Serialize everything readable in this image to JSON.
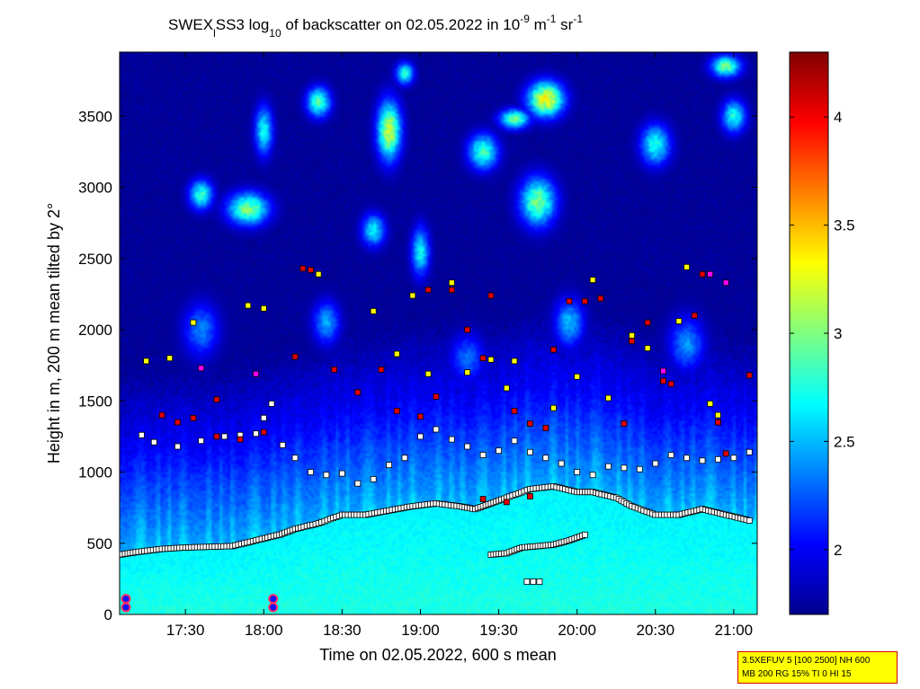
{
  "figure": {
    "title_parts": {
      "station": "SWEX",
      "sub": "l",
      "mid": "SS3 log",
      "base_sub": "10",
      "text": " of backscatter on 02.05.2022 in 10",
      "exp1": "-9",
      "unit_m": " m",
      "exp2": "-1",
      "unit_sr": " sr",
      "exp3": "-1"
    },
    "info_box": {
      "line1": "3.5XEFUV 5 [100 2500] NH 600",
      "line2": "MB 200 RG 15% TI 0 HI 15",
      "background": "#ffff00",
      "border": "#d00000"
    }
  },
  "chart_data": {
    "type": "heatmap",
    "xlabel": "Time on 02.05.2022, 600 s mean",
    "ylabel": "Height in m, 200 m mean tilted by 2°",
    "x_range_hours": [
      17.08,
      21.15
    ],
    "x_ticks": [
      {
        "value": 17.5,
        "label": "17:30"
      },
      {
        "value": 18.0,
        "label": "18:00"
      },
      {
        "value": 18.5,
        "label": "18:30"
      },
      {
        "value": 19.0,
        "label": "19:00"
      },
      {
        "value": 19.5,
        "label": "19:30"
      },
      {
        "value": 20.0,
        "label": "20:00"
      },
      {
        "value": 20.5,
        "label": "20:30"
      },
      {
        "value": 21.0,
        "label": "21:00"
      }
    ],
    "y_range": [
      0,
      3950
    ],
    "y_ticks": [
      0,
      500,
      1000,
      1500,
      2000,
      2500,
      3000,
      3500
    ],
    "colorbar": {
      "range": [
        1.7,
        4.3
      ],
      "ticks": [
        2,
        2.5,
        3,
        3.5,
        4
      ],
      "colormap": "jet"
    },
    "layers": {
      "surface_layer_value": 2.65,
      "upper_background_value": 1.75
    },
    "mixing_layer_height": [
      [
        17.08,
        420
      ],
      [
        17.2,
        440
      ],
      [
        17.35,
        460
      ],
      [
        17.5,
        470
      ],
      [
        17.65,
        475
      ],
      [
        17.8,
        480
      ],
      [
        17.95,
        520
      ],
      [
        18.1,
        560
      ],
      [
        18.2,
        600
      ],
      [
        18.35,
        640
      ],
      [
        18.5,
        700
      ],
      [
        18.65,
        700
      ],
      [
        18.8,
        730
      ],
      [
        18.95,
        760
      ],
      [
        19.1,
        780
      ],
      [
        19.25,
        760
      ],
      [
        19.35,
        740
      ],
      [
        19.45,
        780
      ],
      [
        19.55,
        820
      ],
      [
        19.7,
        880
      ],
      [
        19.85,
        900
      ],
      [
        20.0,
        860
      ],
      [
        20.1,
        860
      ],
      [
        20.25,
        820
      ],
      [
        20.35,
        760
      ],
      [
        20.5,
        700
      ],
      [
        20.65,
        700
      ],
      [
        20.8,
        740
      ],
      [
        20.95,
        700
      ],
      [
        21.1,
        660
      ]
    ],
    "lower_layer_points": [
      [
        19.45,
        420
      ],
      [
        19.55,
        430
      ],
      [
        19.65,
        470
      ],
      [
        19.75,
        480
      ],
      [
        19.85,
        490
      ],
      [
        19.95,
        520
      ],
      [
        20.05,
        560
      ]
    ],
    "isolated_low_points": [
      [
        19.68,
        230
      ],
      [
        19.72,
        230
      ],
      [
        19.76,
        230
      ]
    ],
    "cloud_base_points": [
      [
        17.22,
        1260
      ],
      [
        17.3,
        1210
      ],
      [
        17.45,
        1180
      ],
      [
        17.6,
        1220
      ],
      [
        17.75,
        1250
      ],
      [
        17.85,
        1260
      ],
      [
        17.95,
        1270
      ],
      [
        18.0,
        1380
      ],
      [
        18.05,
        1480
      ],
      [
        18.12,
        1190
      ],
      [
        18.2,
        1100
      ],
      [
        18.3,
        1000
      ],
      [
        18.4,
        980
      ],
      [
        18.5,
        990
      ],
      [
        18.6,
        920
      ],
      [
        18.7,
        950
      ],
      [
        18.8,
        1050
      ],
      [
        18.9,
        1100
      ],
      [
        19.0,
        1250
      ],
      [
        19.1,
        1300
      ],
      [
        19.2,
        1230
      ],
      [
        19.3,
        1180
      ],
      [
        19.4,
        1120
      ],
      [
        19.5,
        1150
      ],
      [
        19.6,
        1220
      ],
      [
        19.7,
        1140
      ],
      [
        19.8,
        1100
      ],
      [
        19.9,
        1060
      ],
      [
        20.0,
        1000
      ],
      [
        20.1,
        980
      ],
      [
        20.2,
        1040
      ],
      [
        20.3,
        1030
      ],
      [
        20.4,
        1020
      ],
      [
        20.5,
        1060
      ],
      [
        20.6,
        1120
      ],
      [
        20.7,
        1100
      ],
      [
        20.8,
        1080
      ],
      [
        20.9,
        1090
      ],
      [
        21.0,
        1100
      ],
      [
        21.1,
        1140
      ]
    ],
    "red_marks": [
      [
        17.35,
        1400
      ],
      [
        17.45,
        1350
      ],
      [
        17.55,
        1380
      ],
      [
        17.7,
        1250
      ],
      [
        17.85,
        1230
      ],
      [
        18.0,
        1280
      ],
      [
        18.2,
        1810
      ],
      [
        18.25,
        2430
      ],
      [
        18.3,
        2420
      ],
      [
        18.45,
        1720
      ],
      [
        18.6,
        1560
      ],
      [
        18.75,
        1720
      ],
      [
        18.85,
        1430
      ],
      [
        19.0,
        1390
      ],
      [
        19.05,
        2280
      ],
      [
        19.1,
        1530
      ],
      [
        19.2,
        2280
      ],
      [
        19.3,
        2000
      ],
      [
        19.4,
        1800
      ],
      [
        19.45,
        2240
      ],
      [
        19.6,
        1430
      ],
      [
        19.7,
        1340
      ],
      [
        19.8,
        1310
      ],
      [
        19.95,
        2200
      ],
      [
        20.05,
        2200
      ],
      [
        20.15,
        2220
      ],
      [
        20.3,
        1340
      ],
      [
        20.45,
        2050
      ],
      [
        20.55,
        1640
      ],
      [
        20.6,
        1620
      ],
      [
        20.75,
        2100
      ],
      [
        20.8,
        2390
      ],
      [
        20.9,
        1350
      ],
      [
        20.95,
        1130
      ],
      [
        21.1,
        1680
      ],
      [
        19.4,
        810
      ],
      [
        19.55,
        790
      ],
      [
        19.7,
        830
      ],
      [
        17.7,
        1510
      ],
      [
        19.85,
        1860
      ],
      [
        20.35,
        1920
      ]
    ],
    "yellow_marks": [
      [
        17.25,
        1780
      ],
      [
        17.4,
        1800
      ],
      [
        17.55,
        2050
      ],
      [
        17.9,
        2170
      ],
      [
        18.0,
        2150
      ],
      [
        18.35,
        2390
      ],
      [
        18.7,
        2130
      ],
      [
        18.85,
        1830
      ],
      [
        18.95,
        2240
      ],
      [
        19.05,
        1690
      ],
      [
        19.2,
        2330
      ],
      [
        19.3,
        1700
      ],
      [
        19.45,
        1790
      ],
      [
        19.55,
        1590
      ],
      [
        19.6,
        1780
      ],
      [
        19.85,
        1450
      ],
      [
        20.0,
        1670
      ],
      [
        20.1,
        2350
      ],
      [
        20.2,
        1520
      ],
      [
        20.35,
        1960
      ],
      [
        20.45,
        1870
      ],
      [
        20.65,
        2060
      ],
      [
        20.7,
        2440
      ],
      [
        20.85,
        1480
      ],
      [
        20.9,
        1400
      ]
    ],
    "magenta_marks": [
      [
        17.6,
        1730
      ],
      [
        17.95,
        1690
      ],
      [
        20.55,
        1710
      ],
      [
        20.85,
        2390
      ],
      [
        20.95,
        2330
      ]
    ],
    "surface_markers": [
      [
        17.12,
        110
      ],
      [
        17.12,
        50
      ],
      [
        18.06,
        110
      ],
      [
        18.06,
        50
      ]
    ],
    "clouds_upper": [
      {
        "x": 18.8,
        "y": 3400,
        "sx": 0.08,
        "sy": 220,
        "v": 3.2
      },
      {
        "x": 19.8,
        "y": 3620,
        "sx": 0.12,
        "sy": 130,
        "v": 3.35
      },
      {
        "x": 19.75,
        "y": 2900,
        "sx": 0.12,
        "sy": 180,
        "v": 3.0
      },
      {
        "x": 17.9,
        "y": 2850,
        "sx": 0.14,
        "sy": 120,
        "v": 3.0
      },
      {
        "x": 17.6,
        "y": 2950,
        "sx": 0.08,
        "sy": 110,
        "v": 2.8
      },
      {
        "x": 18.35,
        "y": 3600,
        "sx": 0.08,
        "sy": 110,
        "v": 2.9
      },
      {
        "x": 19.4,
        "y": 3250,
        "sx": 0.1,
        "sy": 130,
        "v": 2.85
      },
      {
        "x": 20.5,
        "y": 3300,
        "sx": 0.1,
        "sy": 150,
        "v": 2.75
      },
      {
        "x": 21.0,
        "y": 3500,
        "sx": 0.08,
        "sy": 120,
        "v": 2.75
      },
      {
        "x": 18.0,
        "y": 3400,
        "sx": 0.06,
        "sy": 180,
        "v": 2.7
      },
      {
        "x": 19.0,
        "y": 2550,
        "sx": 0.06,
        "sy": 180,
        "v": 2.7
      },
      {
        "x": 18.7,
        "y": 2700,
        "sx": 0.08,
        "sy": 120,
        "v": 2.65
      },
      {
        "x": 20.95,
        "y": 3850,
        "sx": 0.1,
        "sy": 80,
        "v": 2.95
      },
      {
        "x": 18.9,
        "y": 3800,
        "sx": 0.06,
        "sy": 80,
        "v": 2.8
      },
      {
        "x": 19.6,
        "y": 3480,
        "sx": 0.1,
        "sy": 70,
        "v": 3.0
      },
      {
        "x": 18.4,
        "y": 2050,
        "sx": 0.09,
        "sy": 160,
        "v": 2.45
      },
      {
        "x": 19.95,
        "y": 2050,
        "sx": 0.1,
        "sy": 180,
        "v": 2.5
      },
      {
        "x": 20.7,
        "y": 1900,
        "sx": 0.12,
        "sy": 200,
        "v": 2.4
      },
      {
        "x": 17.6,
        "y": 2000,
        "sx": 0.12,
        "sy": 200,
        "v": 2.35
      },
      {
        "x": 19.3,
        "y": 1800,
        "sx": 0.12,
        "sy": 180,
        "v": 2.3
      }
    ]
  }
}
